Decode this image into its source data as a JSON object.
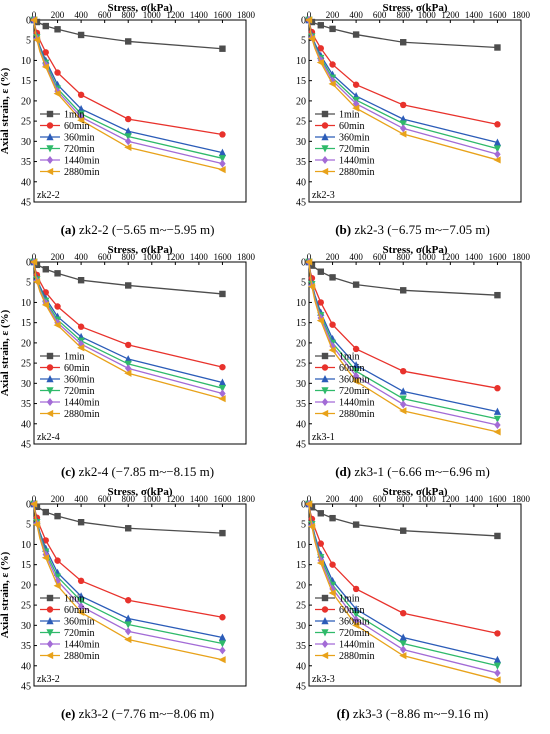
{
  "chart_data": [
    {
      "type": "line",
      "caption": "(a) zk2-2 (−5.65 m~−5.95 m)",
      "caption_letter": "(a)",
      "caption_rest": " zk2-2 (−5.65 m~−5.95 m)",
      "sample": "zk2-2",
      "xlabel": "Stress, σ(kPa)",
      "ylabel": "Axial strain, ε (%)",
      "xlim": [
        0,
        1800
      ],
      "ylim": [
        0,
        45
      ],
      "xticks": [
        0,
        200,
        400,
        600,
        800,
        1000,
        1200,
        1400,
        1600,
        1800
      ],
      "yticks": [
        0,
        5,
        10,
        15,
        20,
        25,
        30,
        35,
        40,
        45
      ],
      "y_inverted": true,
      "legend_position": "lower-left",
      "x": [
        0,
        12.5,
        25,
        50,
        100,
        200,
        400,
        800,
        1600
      ],
      "series": [
        {
          "name": "1min",
          "color": "#4d4d4d",
          "marker": "square",
          "values": [
            0,
            0.3,
            0.5,
            0.8,
            1.5,
            2.3,
            3.7,
            5.3,
            7.1
          ]
        },
        {
          "name": "60min",
          "color": "#e8322c",
          "marker": "circle",
          "values": [
            0,
            2.0,
            3.2,
            5.0,
            8.0,
            13.0,
            18.5,
            24.5,
            28.3
          ]
        },
        {
          "name": "360min",
          "color": "#2b5cb8",
          "marker": "triangle",
          "values": [
            0,
            2.5,
            4.0,
            6.5,
            10.0,
            16.0,
            22.0,
            27.5,
            32.8
          ]
        },
        {
          "name": "720min",
          "color": "#2fba6a",
          "marker": "tri-down",
          "values": [
            0,
            2.7,
            4.3,
            7.0,
            10.6,
            17.0,
            23.2,
            28.8,
            34.2
          ]
        },
        {
          "name": "1440min",
          "color": "#a36bd6",
          "marker": "diamond",
          "values": [
            0,
            2.9,
            4.6,
            7.4,
            11.1,
            17.6,
            24.0,
            30.0,
            35.5
          ]
        },
        {
          "name": "2880min",
          "color": "#e8a21a",
          "marker": "tri-left",
          "values": [
            0,
            3.1,
            4.9,
            7.8,
            11.6,
            18.2,
            24.8,
            31.5,
            37.0
          ]
        }
      ]
    },
    {
      "type": "line",
      "caption": "(b) zk2-3 (−6.75 m~−7.05 m)",
      "caption_letter": "(b)",
      "caption_rest": " zk2-3 (−6.75 m~−7.05 m)",
      "sample": "zk2-3",
      "xlabel": "Stress, σ(kPa)",
      "ylabel": "",
      "xlim": [
        0,
        1800
      ],
      "ylim": [
        0,
        45
      ],
      "xticks": [
        0,
        200,
        400,
        600,
        800,
        1000,
        1200,
        1400,
        1600,
        1800
      ],
      "yticks": [
        0,
        5,
        10,
        15,
        20,
        25,
        30,
        35,
        40,
        45
      ],
      "y_inverted": true,
      "legend_position": "lower-left",
      "x": [
        0,
        12.5,
        25,
        50,
        100,
        200,
        400,
        800,
        1600
      ],
      "series": [
        {
          "name": "1min",
          "color": "#4d4d4d",
          "marker": "square",
          "values": [
            0,
            0.3,
            0.5,
            0.8,
            1.3,
            2.2,
            3.6,
            5.5,
            6.8
          ]
        },
        {
          "name": "60min",
          "color": "#e8322c",
          "marker": "circle",
          "values": [
            0,
            1.8,
            3.0,
            4.5,
            7.0,
            11.0,
            16.0,
            21.0,
            25.8
          ]
        },
        {
          "name": "360min",
          "color": "#2b5cb8",
          "marker": "triangle",
          "values": [
            0,
            2.3,
            3.8,
            5.8,
            8.8,
            13.5,
            18.8,
            24.5,
            30.3
          ]
        },
        {
          "name": "720min",
          "color": "#2fba6a",
          "marker": "tri-down",
          "values": [
            0,
            2.5,
            4.1,
            6.2,
            9.4,
            14.3,
            19.8,
            25.6,
            31.8
          ]
        },
        {
          "name": "1440min",
          "color": "#a36bd6",
          "marker": "diamond",
          "values": [
            0,
            2.6,
            4.3,
            6.6,
            9.9,
            15.0,
            20.7,
            26.8,
            33.2
          ]
        },
        {
          "name": "2880min",
          "color": "#e8a21a",
          "marker": "tri-left",
          "values": [
            0,
            2.8,
            4.6,
            7.0,
            10.5,
            15.8,
            21.8,
            28.2,
            34.6
          ]
        }
      ]
    },
    {
      "type": "line",
      "caption": "(c) zk2-4 (−7.85 m~−8.15 m)",
      "caption_letter": "(c)",
      "caption_rest": " zk2-4 (−7.85 m~−8.15 m)",
      "sample": "zk2-4",
      "xlabel": "Stress, σ(kPa)",
      "ylabel": "Axial strain, ε (%)",
      "xlim": [
        0,
        1800
      ],
      "ylim": [
        0,
        45
      ],
      "xticks": [
        0,
        200,
        400,
        600,
        800,
        1000,
        1200,
        1400,
        1600,
        1800
      ],
      "yticks": [
        0,
        5,
        10,
        15,
        20,
        25,
        30,
        35,
        40,
        45
      ],
      "y_inverted": true,
      "legend_position": "lower-left",
      "x": [
        0,
        12.5,
        25,
        50,
        100,
        200,
        400,
        800,
        1600
      ],
      "series": [
        {
          "name": "1min",
          "color": "#4d4d4d",
          "marker": "square",
          "values": [
            0,
            0.4,
            0.7,
            1.0,
            1.8,
            2.8,
            4.5,
            5.8,
            7.9
          ]
        },
        {
          "name": "60min",
          "color": "#e8322c",
          "marker": "circle",
          "values": [
            0,
            2.0,
            3.2,
            4.8,
            7.5,
            11.0,
            16.0,
            20.5,
            26.0
          ]
        },
        {
          "name": "360min",
          "color": "#2b5cb8",
          "marker": "triangle",
          "values": [
            0,
            2.6,
            4.0,
            6.0,
            9.0,
            13.5,
            18.5,
            24.0,
            29.8
          ]
        },
        {
          "name": "720min",
          "color": "#2fba6a",
          "marker": "tri-down",
          "values": [
            0,
            2.8,
            4.3,
            6.5,
            9.6,
            14.3,
            19.5,
            25.2,
            31.2
          ]
        },
        {
          "name": "1440min",
          "color": "#a36bd6",
          "marker": "diamond",
          "values": [
            0,
            3.0,
            4.6,
            6.9,
            10.1,
            15.0,
            20.3,
            26.3,
            32.5
          ]
        },
        {
          "name": "2880min",
          "color": "#e8a21a",
          "marker": "tri-left",
          "values": [
            0,
            3.2,
            4.9,
            7.3,
            10.6,
            15.6,
            21.2,
            27.5,
            33.8
          ]
        }
      ]
    },
    {
      "type": "line",
      "caption": "(d) zk3-1 (−6.66 m~−6.96 m)",
      "caption_letter": "(d)",
      "caption_rest": " zk3-1 (−6.66 m~−6.96 m)",
      "sample": "zk3-1",
      "xlabel": "Stress, σ(kPa)",
      "ylabel": "",
      "xlim": [
        0,
        1800
      ],
      "ylim": [
        0,
        45
      ],
      "xticks": [
        0,
        200,
        400,
        600,
        800,
        1000,
        1200,
        1400,
        1600,
        1800
      ],
      "yticks": [
        0,
        5,
        10,
        15,
        20,
        25,
        30,
        35,
        40,
        45
      ],
      "y_inverted": true,
      "legend_position": "lower-left",
      "x": [
        0,
        12.5,
        25,
        50,
        100,
        200,
        400,
        800,
        1600
      ],
      "series": [
        {
          "name": "1min",
          "color": "#4d4d4d",
          "marker": "square",
          "values": [
            0,
            0.5,
            0.9,
            1.4,
            2.4,
            3.8,
            5.6,
            7.0,
            8.2
          ]
        },
        {
          "name": "60min",
          "color": "#e8322c",
          "marker": "circle",
          "values": [
            0,
            2.5,
            4.0,
            6.5,
            10.0,
            15.5,
            21.5,
            27.0,
            31.2
          ]
        },
        {
          "name": "360min",
          "color": "#2b5cb8",
          "marker": "triangle",
          "values": [
            0,
            3.2,
            5.2,
            8.2,
            12.5,
            19.0,
            25.5,
            32.0,
            37.0
          ]
        },
        {
          "name": "720min",
          "color": "#2fba6a",
          "marker": "tri-down",
          "values": [
            0,
            3.4,
            5.5,
            8.7,
            13.2,
            20.0,
            27.0,
            33.8,
            38.8
          ]
        },
        {
          "name": "1440min",
          "color": "#a36bd6",
          "marker": "diamond",
          "values": [
            0,
            3.6,
            5.8,
            9.1,
            13.8,
            20.8,
            28.2,
            35.2,
            40.3
          ]
        },
        {
          "name": "2880min",
          "color": "#e8a21a",
          "marker": "tri-left",
          "values": [
            0,
            3.8,
            6.1,
            9.6,
            14.5,
            21.8,
            29.5,
            36.8,
            42.0
          ]
        }
      ]
    },
    {
      "type": "line",
      "caption": "(e) zk3-2 (−7.76 m~−8.06 m)",
      "caption_letter": "(e)",
      "caption_rest": " zk3-2 (−7.76 m~−8.06 m)",
      "sample": "zk3-2",
      "xlabel": "Stress, σ(kPa)",
      "ylabel": "Axial strain, ε (%)",
      "xlim": [
        0,
        1800
      ],
      "ylim": [
        0,
        45
      ],
      "xticks": [
        0,
        200,
        400,
        600,
        800,
        1000,
        1200,
        1400,
        1600,
        1800
      ],
      "yticks": [
        0,
        5,
        10,
        15,
        20,
        25,
        30,
        35,
        40,
        45
      ],
      "y_inverted": true,
      "legend_position": "lower-left",
      "x": [
        0,
        12.5,
        25,
        50,
        100,
        200,
        400,
        800,
        1600
      ],
      "series": [
        {
          "name": "1min",
          "color": "#4d4d4d",
          "marker": "square",
          "values": [
            0,
            0.4,
            0.7,
            1.1,
            2.0,
            3.0,
            4.5,
            6.0,
            7.2
          ]
        },
        {
          "name": "60min",
          "color": "#e8322c",
          "marker": "circle",
          "values": [
            0,
            2.0,
            3.4,
            5.5,
            9.0,
            14.0,
            19.0,
            23.8,
            28.0
          ]
        },
        {
          "name": "360min",
          "color": "#2b5cb8",
          "marker": "triangle",
          "values": [
            0,
            2.5,
            4.2,
            7.0,
            11.0,
            17.0,
            22.8,
            28.3,
            33.0
          ]
        },
        {
          "name": "720min",
          "color": "#2fba6a",
          "marker": "tri-down",
          "values": [
            0,
            2.7,
            4.5,
            7.5,
            11.8,
            18.0,
            24.0,
            29.8,
            34.5
          ]
        },
        {
          "name": "1440min",
          "color": "#a36bd6",
          "marker": "diamond",
          "values": [
            0,
            2.9,
            4.8,
            8.0,
            12.5,
            19.0,
            25.3,
            31.5,
            36.2
          ]
        },
        {
          "name": "2880min",
          "color": "#e8a21a",
          "marker": "tri-left",
          "values": [
            0,
            3.1,
            5.1,
            8.5,
            13.3,
            20.2,
            26.8,
            33.5,
            38.5
          ]
        }
      ]
    },
    {
      "type": "line",
      "caption": "(f) zk3-3 (−8.86 m~−9.16 m)",
      "caption_letter": "(f)",
      "caption_rest": " zk3-3 (−8.86 m~−9.16 m)",
      "sample": "zk3-3",
      "xlabel": "Stress, σ(kPa)",
      "ylabel": "",
      "xlim": [
        0,
        1800
      ],
      "ylim": [
        0,
        45
      ],
      "xticks": [
        0,
        200,
        400,
        600,
        800,
        1000,
        1200,
        1400,
        1600,
        1800
      ],
      "yticks": [
        0,
        5,
        10,
        15,
        20,
        25,
        30,
        35,
        40,
        45
      ],
      "y_inverted": true,
      "legend_position": "lower-left",
      "x": [
        0,
        12.5,
        25,
        50,
        100,
        200,
        400,
        800,
        1600
      ],
      "series": [
        {
          "name": "1min",
          "color": "#4d4d4d",
          "marker": "square",
          "values": [
            0,
            0.5,
            0.8,
            1.3,
            2.3,
            3.5,
            5.1,
            6.6,
            7.9
          ]
        },
        {
          "name": "60min",
          "color": "#e8322c",
          "marker": "circle",
          "values": [
            0,
            2.2,
            3.7,
            6.0,
            9.8,
            15.0,
            21.0,
            27.0,
            32.0
          ]
        },
        {
          "name": "360min",
          "color": "#2b5cb8",
          "marker": "triangle",
          "values": [
            0,
            2.8,
            4.7,
            7.8,
            12.5,
            19.0,
            26.0,
            33.0,
            38.5
          ]
        },
        {
          "name": "720min",
          "color": "#2fba6a",
          "marker": "tri-down",
          "values": [
            0,
            3.0,
            5.0,
            8.3,
            13.2,
            20.0,
            27.3,
            34.5,
            40.0
          ]
        },
        {
          "name": "1440min",
          "color": "#a36bd6",
          "marker": "diamond",
          "values": [
            0,
            3.2,
            5.3,
            8.8,
            13.9,
            21.0,
            28.6,
            36.0,
            41.8
          ]
        },
        {
          "name": "2880min",
          "color": "#e8a21a",
          "marker": "tri-left",
          "values": [
            0,
            3.4,
            5.6,
            9.3,
            14.6,
            22.0,
            30.0,
            37.5,
            43.5
          ]
        }
      ]
    }
  ]
}
